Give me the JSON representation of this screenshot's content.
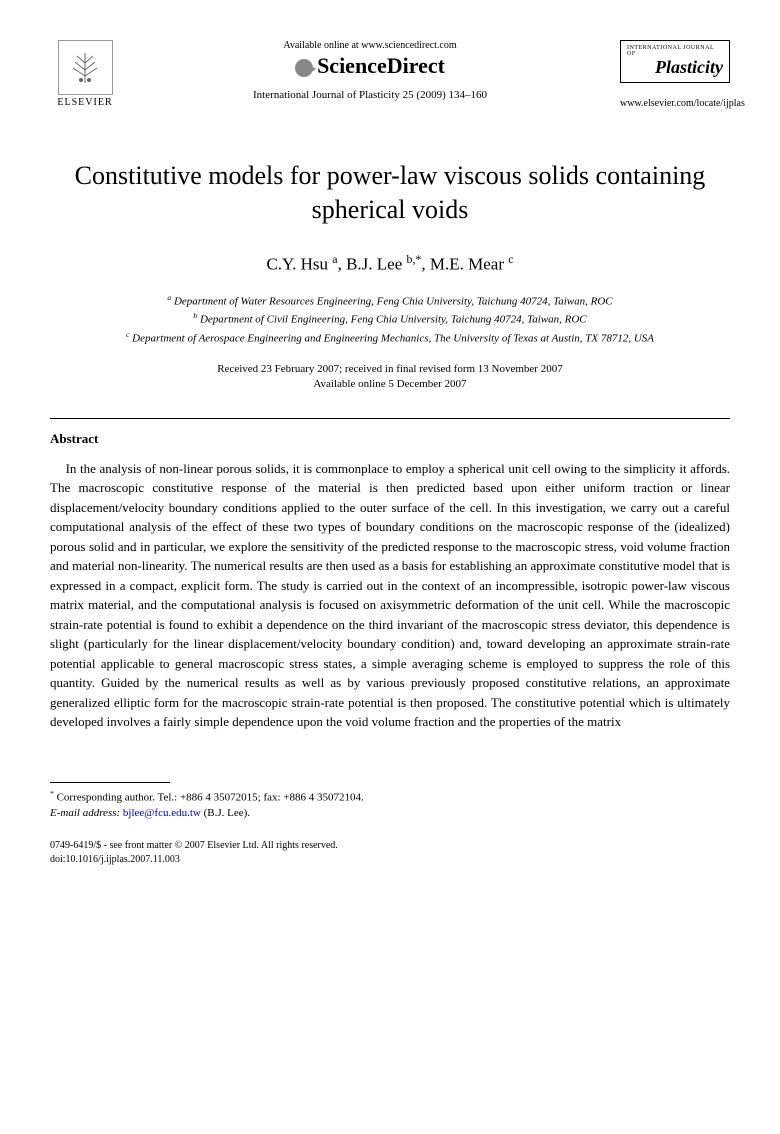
{
  "header": {
    "publisher": "ELSEVIER",
    "available_text": "Available online at www.sciencedirect.com",
    "platform": "ScienceDirect",
    "journal_ref": "International Journal of Plasticity 25 (2009) 134–160",
    "journal_logo_top": "INTERNATIONAL JOURNAL OF",
    "journal_logo_main": "Plasticity",
    "locate_url": "www.elsevier.com/locate/ijplas"
  },
  "title": "Constitutive models for power-law viscous solids containing spherical voids",
  "authors_html": "C.Y. Hsu <sup>a</sup>, B.J. Lee <sup>b,*</sup>, M.E. Mear <sup>c</sup>",
  "affiliations": {
    "a": "Department of Water Resources Engineering, Feng Chia University, Taichung 40724, Taiwan, ROC",
    "b": "Department of Civil Engineering, Feng Chia University, Taichung 40724, Taiwan, ROC",
    "c": "Department of Aerospace Engineering and Engineering Mechanics, The University of Texas at Austin, TX 78712, USA"
  },
  "dates": {
    "received": "Received 23 February 2007; received in final revised form 13 November 2007",
    "online": "Available online 5 December 2007"
  },
  "abstract": {
    "heading": "Abstract",
    "body": "In the analysis of non-linear porous solids, it is commonplace to employ a spherical unit cell owing to the simplicity it affords. The macroscopic constitutive response of the material is then predicted based upon either uniform traction or linear displacement/velocity boundary conditions applied to the outer surface of the cell. In this investigation, we carry out a careful computational analysis of the effect of these two types of boundary conditions on the macroscopic response of the (idealized) porous solid and in particular, we explore the sensitivity of the predicted response to the macroscopic stress, void volume fraction and material non-linearity. The numerical results are then used as a basis for establishing an approximate constitutive model that is expressed in a compact, explicit form. The study is carried out in the context of an incompressible, isotropic power-law viscous matrix material, and the computational analysis is focused on axisymmetric deformation of the unit cell. While the macroscopic strain-rate potential is found to exhibit a dependence on the third invariant of the macroscopic stress deviator, this dependence is slight (particularly for the linear displacement/velocity boundary condition) and, toward developing an approximate strain-rate potential applicable to general macroscopic stress states, a simple averaging scheme is employed to suppress the role of this quantity. Guided by the numerical results as well as by various previously proposed constitutive relations, an approximate generalized elliptic form for the macroscopic strain-rate potential is then proposed. The constitutive potential which is ultimately developed involves a fairly simple dependence upon the void volume fraction and the properties of the matrix"
  },
  "footnote": {
    "corresponding": "Corresponding author. Tel.: +886 4 35072015; fax: +886 4 35072104.",
    "email_label": "E-mail address:",
    "email": "bjlee@fcu.edu.tw",
    "email_author": "(B.J. Lee)."
  },
  "copyright": {
    "line1": "0749-6419/$ - see front matter © 2007 Elsevier Ltd. All rights reserved.",
    "doi": "doi:10.1016/j.ijplas.2007.11.003"
  }
}
